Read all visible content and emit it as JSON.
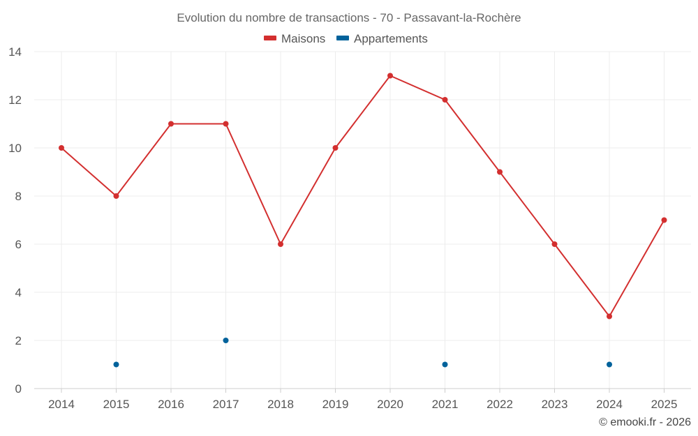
{
  "chart_data": {
    "type": "line",
    "title": "Evolution du nombre de transactions - 70 - Passavant-la-Rochère",
    "categories": [
      "2014",
      "2015",
      "2016",
      "2017",
      "2018",
      "2019",
      "2020",
      "2021",
      "2022",
      "2023",
      "2024",
      "2025"
    ],
    "series": [
      {
        "name": "Maisons",
        "color": "#d32f2f",
        "values": [
          10,
          8,
          11,
          11,
          6,
          10,
          13,
          12,
          9,
          6,
          3,
          7
        ]
      },
      {
        "name": "Appartements",
        "color": "#01629b",
        "values": [
          null,
          1,
          null,
          2,
          null,
          null,
          null,
          1,
          null,
          null,
          1,
          null
        ]
      }
    ],
    "ylim": [
      0,
      14
    ],
    "yticks": [
      0,
      2,
      4,
      6,
      8,
      10,
      12,
      14
    ],
    "xlabel": "",
    "ylabel": "",
    "grid": true,
    "legend": "top-center"
  },
  "credit": "© emooki.fr - 2026"
}
